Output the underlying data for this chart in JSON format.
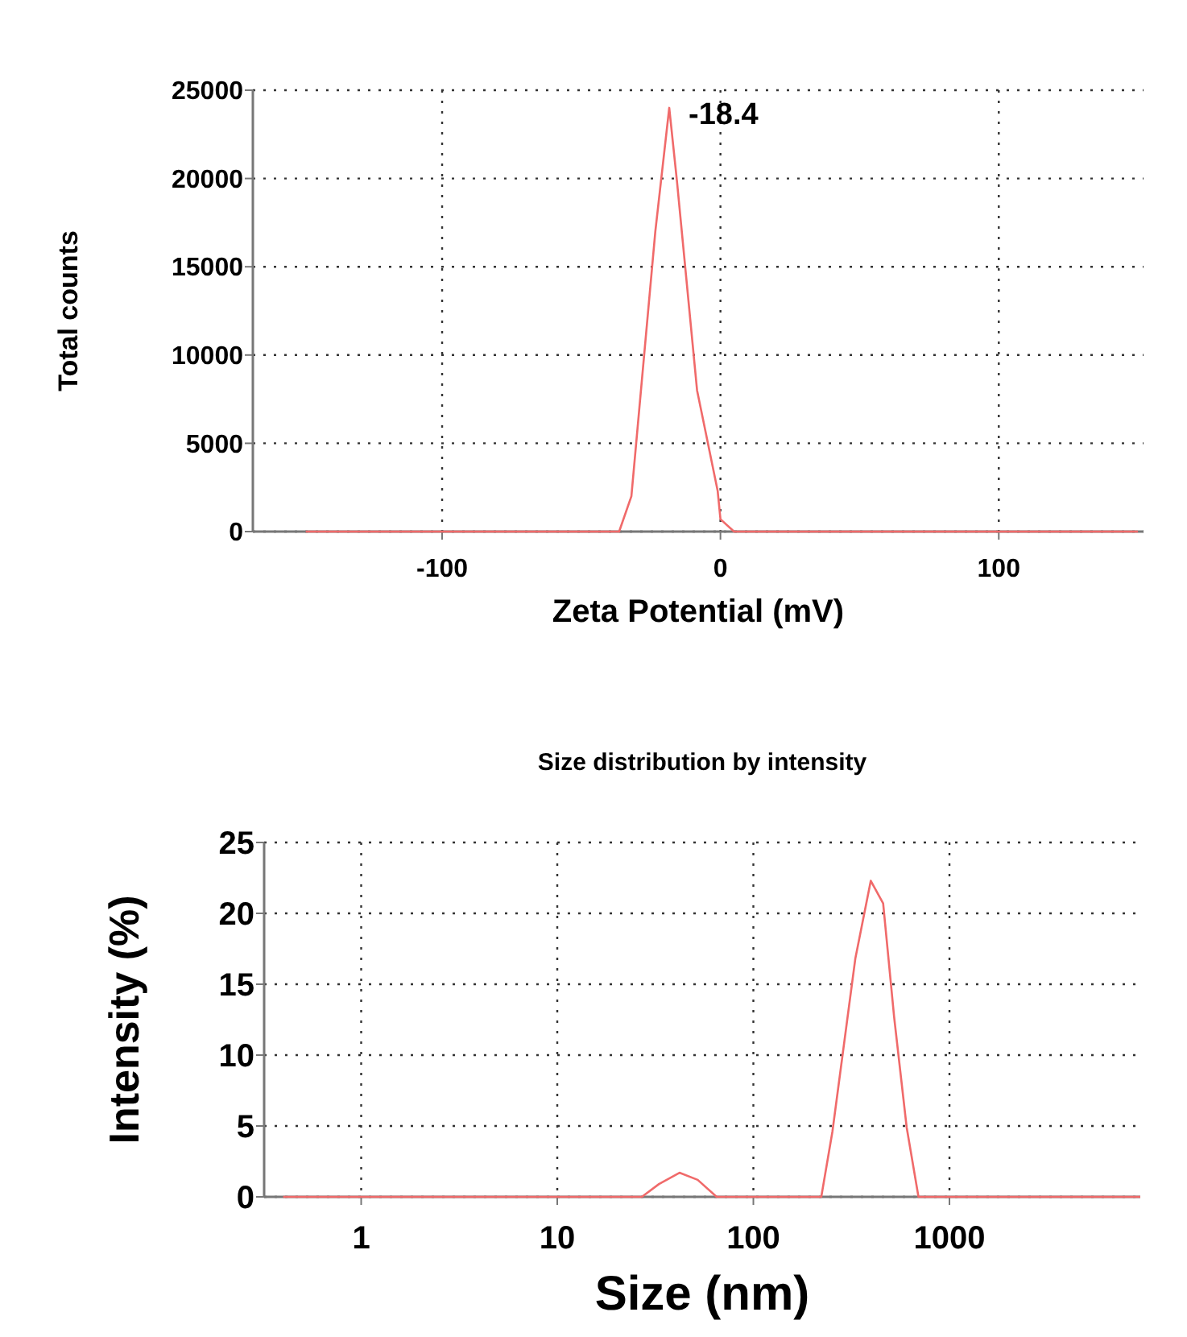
{
  "chart_data": [
    {
      "type": "line",
      "xlabel": "Zeta Potential (mV)",
      "ylabel": "Total counts",
      "xlim": [
        -168,
        152
      ],
      "xticks": [
        -100,
        0,
        100
      ],
      "ylim": [
        0,
        25000
      ],
      "yticks": [
        0,
        5000,
        10000,
        15000,
        20000,
        25000
      ],
      "grid": true,
      "marker": "none",
      "line_style": "solid",
      "annotations": [
        {
          "text": "-18.4",
          "x": -18.4,
          "y": 24000
        }
      ],
      "series": [
        {
          "color": "#f06a6a",
          "x": [
            -149,
            -36.4,
            -32,
            -23.4,
            -18.4,
            -15.6,
            -8.4,
            -1,
            0,
            4.9,
            150
          ],
          "values": [
            0,
            0,
            2000,
            17000,
            24000,
            19800,
            8000,
            2300,
            700,
            0,
            0
          ]
        }
      ]
    },
    {
      "type": "line",
      "title": "Size distribution by intensity",
      "xlabel": "Size (nm)",
      "ylabel": "Intensity (%)",
      "log": "x",
      "xlim": [
        0.32,
        9400
      ],
      "xticks": [
        1,
        10,
        100,
        1000
      ],
      "ylim": [
        0,
        25
      ],
      "yticks": [
        0,
        5,
        10,
        15,
        20,
        25
      ],
      "grid": true,
      "marker": "none",
      "line_style": "solid",
      "series": [
        {
          "color": "#f06a6a",
          "x": [
            0.4,
            27,
            33,
            42,
            52,
            65,
            222,
            253,
            331,
            397,
            459,
            522,
            605,
            695,
            9400
          ],
          "values": [
            0,
            0,
            0.9,
            1.7,
            1.2,
            0,
            0,
            4.6,
            16.8,
            22.3,
            20.7,
            12.7,
            4.9,
            0,
            0
          ]
        }
      ]
    }
  ]
}
